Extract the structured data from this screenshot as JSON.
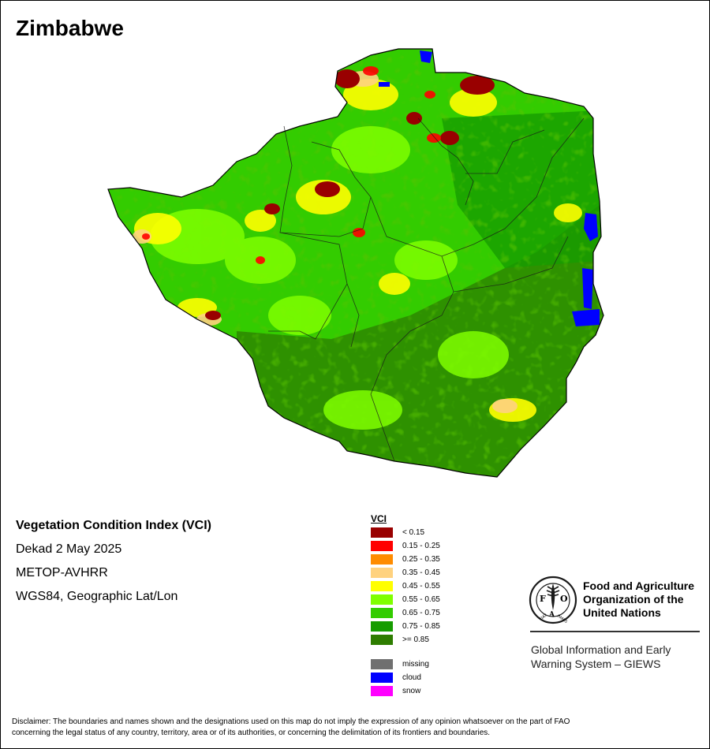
{
  "country": "Zimbabwe",
  "info": {
    "index_title": "Vegetation Condition Index (VCI)",
    "period": "Dekad 2 May 2025",
    "sensor": "METOP-AVHRR",
    "projection": "WGS84, Geographic Lat/Lon"
  },
  "legend": {
    "title": "VCI",
    "classes": [
      {
        "label": "< 0.15",
        "color": "#990000"
      },
      {
        "label": "0.15 - 0.25",
        "color": "#ff0000"
      },
      {
        "label": "0.25 - 0.35",
        "color": "#ff8c00"
      },
      {
        "label": "0.35 - 0.45",
        "color": "#ffd27f"
      },
      {
        "label": "0.45 - 0.55",
        "color": "#ffff00"
      },
      {
        "label": "0.55 - 0.65",
        "color": "#80ff00"
      },
      {
        "label": "0.65 - 0.75",
        "color": "#33cc00"
      },
      {
        "label": "0.75 - 0.85",
        "color": "#169c00"
      },
      {
        "label": ">= 0.85",
        "color": "#2e7d00"
      }
    ],
    "special": [
      {
        "label": "missing",
        "color": "#707070"
      },
      {
        "label": "cloud",
        "color": "#0000ff"
      },
      {
        "label": "snow",
        "color": "#ff00ff"
      }
    ]
  },
  "fao": {
    "logo_icon": "fao-emblem-icon",
    "name_lines": [
      "Food and Agriculture",
      "Organization of the",
      "United Nations"
    ],
    "giews_lines": [
      "Global Information and Early",
      "Warning System – GIEWS"
    ]
  },
  "disclaimer_lines": [
    "Disclaimer: The boundaries and names shown and the designations used on this map do not imply the expression of any opinion whatsoever on the part of FAO",
    "concerning the legal status of any country, territory, area or of its authorities, or concerning the delimitation of its frontiers and boundaries."
  ]
}
